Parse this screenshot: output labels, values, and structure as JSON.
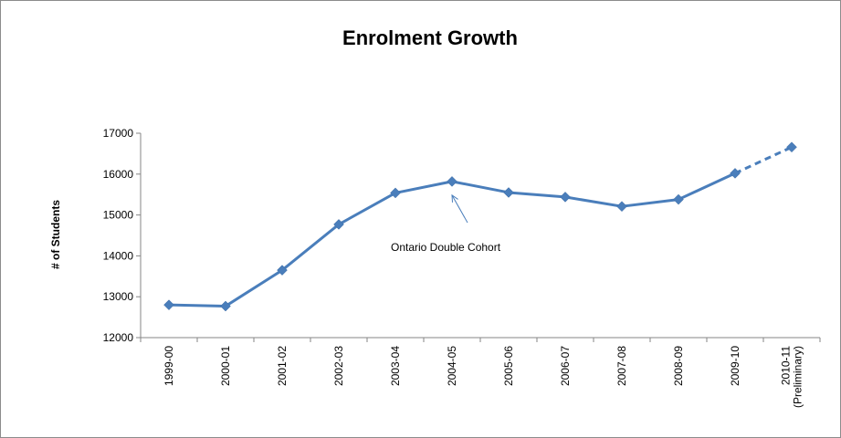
{
  "chart_data": {
    "type": "line",
    "title": "Enrolment Growth",
    "xlabel": "",
    "ylabel": "# of Students",
    "ylim": [
      12000,
      17000
    ],
    "yticks": [
      12000,
      13000,
      14000,
      15000,
      16000,
      17000
    ],
    "grid": false,
    "legend": "none",
    "categories": [
      [
        "1999-00"
      ],
      [
        "2000-01"
      ],
      [
        "2001-02"
      ],
      [
        "2002-03"
      ],
      [
        "2003-04"
      ],
      [
        "2004-05"
      ],
      [
        "2005-06"
      ],
      [
        "2006-07"
      ],
      [
        "2007-08"
      ],
      [
        "2008-09"
      ],
      [
        "2009-10"
      ],
      [
        "2010-11",
        "(Preliminary)"
      ]
    ],
    "series": [
      {
        "values": [
          12800,
          12770,
          13650,
          14770,
          15540,
          15820,
          15550,
          15440,
          15210,
          15380,
          16020,
          16660
        ],
        "color": "#4A7EBB",
        "dashed_last_segment": true
      }
    ],
    "annotations": [
      {
        "text": "Ontario Double Cohort",
        "points_to": "2004-05"
      }
    ]
  }
}
